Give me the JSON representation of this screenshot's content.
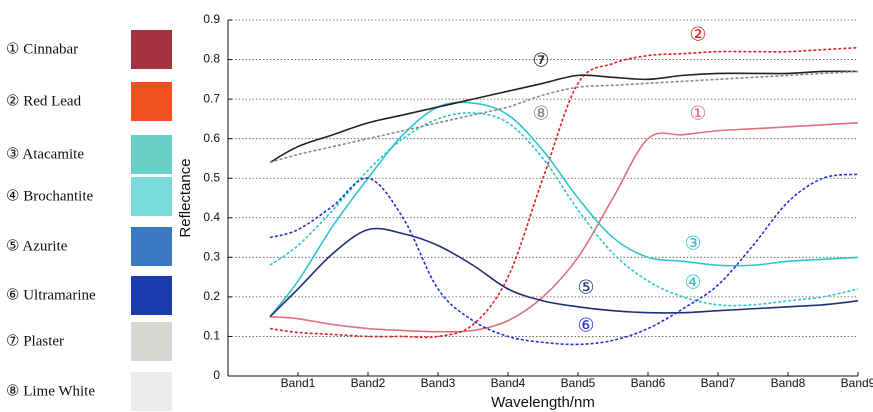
{
  "chart_data": {
    "type": "line",
    "x_label": "Wavelength/nm",
    "y_label": "Reflectance",
    "xlim": [
      0,
      9
    ],
    "ylim": [
      0,
      0.9
    ],
    "xticks": [
      {
        "value": 1,
        "label": "Band1"
      },
      {
        "value": 2,
        "label": "Band2"
      },
      {
        "value": 3,
        "label": "Band3"
      },
      {
        "value": 4,
        "label": "Band4"
      },
      {
        "value": 5,
        "label": "Band5"
      },
      {
        "value": 6,
        "label": "Band6"
      },
      {
        "value": 7,
        "label": "Band7"
      },
      {
        "value": 8,
        "label": "Band8"
      },
      {
        "value": 9,
        "label": "Band9"
      }
    ],
    "yticks": [
      0,
      0.1,
      0.2,
      0.3,
      0.4,
      0.5,
      0.6,
      0.7,
      0.8,
      0.9
    ],
    "grid": true,
    "x": [
      0.6,
      1,
      1.5,
      2,
      2.5,
      3,
      3.5,
      4,
      4.5,
      5,
      5.5,
      6,
      6.5,
      7,
      7.5,
      8,
      8.5,
      9
    ],
    "series": [
      {
        "name": "① Cinnabar",
        "label": "①",
        "color": "#e0707e",
        "dash": false,
        "swatch": "#a8313e",
        "values": [
          0.15,
          0.145,
          0.13,
          0.12,
          0.115,
          0.112,
          0.115,
          0.14,
          0.2,
          0.3,
          0.45,
          0.6,
          0.61,
          0.62,
          0.625,
          0.63,
          0.635,
          0.64
        ]
      },
      {
        "name": "② Red Lead",
        "label": "②",
        "color": "#e02020",
        "dash": true,
        "swatch": "#f2501e",
        "values": [
          0.12,
          0.11,
          0.105,
          0.1,
          0.1,
          0.1,
          0.13,
          0.25,
          0.5,
          0.74,
          0.79,
          0.81,
          0.815,
          0.82,
          0.82,
          0.82,
          0.825,
          0.83
        ]
      },
      {
        "name": "③ Atacamite",
        "label": "③",
        "color": "#2ec4cc",
        "dash": false,
        "swatch": "#67cfc8",
        "values": [
          0.15,
          0.24,
          0.38,
          0.5,
          0.61,
          0.68,
          0.69,
          0.66,
          0.57,
          0.45,
          0.35,
          0.3,
          0.29,
          0.28,
          0.28,
          0.29,
          0.295,
          0.3
        ]
      },
      {
        "name": "④ Brochantite",
        "label": "④",
        "color": "#2ec4cc",
        "dash": true,
        "swatch": "#7adcd8",
        "values": [
          0.28,
          0.33,
          0.42,
          0.52,
          0.6,
          0.65,
          0.665,
          0.64,
          0.55,
          0.42,
          0.31,
          0.24,
          0.2,
          0.18,
          0.18,
          0.19,
          0.2,
          0.22
        ]
      },
      {
        "name": "⑤ Azurite",
        "label": "⑤",
        "color": "#1f2f7a",
        "dash": false,
        "swatch": "#3a78c2",
        "values": [
          0.15,
          0.22,
          0.31,
          0.37,
          0.36,
          0.33,
          0.28,
          0.22,
          0.19,
          0.175,
          0.165,
          0.16,
          0.16,
          0.165,
          0.17,
          0.175,
          0.18,
          0.19
        ]
      },
      {
        "name": "⑥ Ultramarine",
        "label": "⑥",
        "color": "#2233cc",
        "dash": true,
        "swatch": "#1a3cb0",
        "values": [
          0.35,
          0.37,
          0.43,
          0.5,
          0.4,
          0.22,
          0.14,
          0.1,
          0.085,
          0.08,
          0.09,
          0.12,
          0.17,
          0.23,
          0.33,
          0.44,
          0.5,
          0.51
        ]
      },
      {
        "name": "⑦ Plaster",
        "label": "⑦",
        "color": "#222222",
        "dash": false,
        "swatch": "#d6d6d2",
        "values": [
          0.54,
          0.58,
          0.61,
          0.64,
          0.66,
          0.68,
          0.7,
          0.72,
          0.74,
          0.76,
          0.755,
          0.75,
          0.76,
          0.765,
          0.765,
          0.765,
          0.77,
          0.77
        ]
      },
      {
        "name": "⑧ Lime White",
        "label": "⑧",
        "color": "#888888",
        "dash": true,
        "swatch": "#ececea",
        "values": [
          0.54,
          0.56,
          0.58,
          0.6,
          0.62,
          0.64,
          0.66,
          0.68,
          0.71,
          0.73,
          0.735,
          0.74,
          0.745,
          0.75,
          0.755,
          0.76,
          0.765,
          0.77
        ]
      }
    ]
  }
}
